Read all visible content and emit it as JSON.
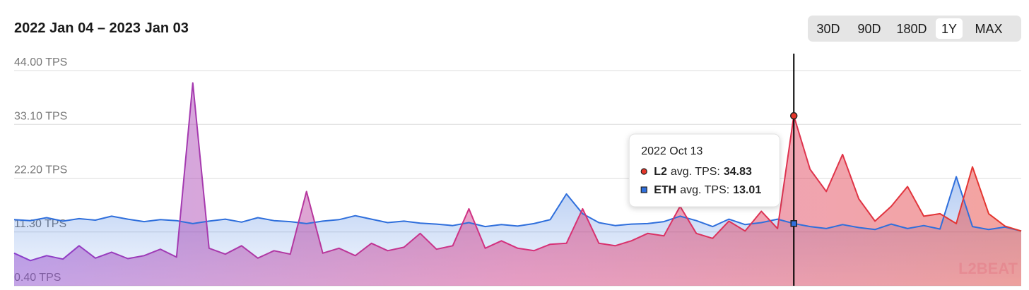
{
  "chart_data": {
    "type": "line",
    "title": "2022 Jan 04 – 2023 Jan 03",
    "ranges": [
      "30D",
      "90D",
      "180D",
      "1Y",
      "MAX"
    ],
    "selected_range": "1Y",
    "watermark": "L2BEAT",
    "categories": [
      null,
      null,
      null,
      null,
      null,
      null,
      null,
      null,
      null,
      null,
      null,
      null,
      null,
      null,
      null,
      null,
      null,
      null,
      null,
      null,
      null,
      null,
      null,
      null,
      null,
      null,
      null,
      null,
      null,
      null,
      null,
      null,
      null,
      null,
      null,
      null,
      null,
      null,
      null,
      null,
      null,
      null,
      null,
      null,
      null,
      null,
      null,
      null,
      "2022 Oct 13",
      null,
      null,
      null,
      null,
      null,
      null,
      null,
      null,
      null,
      null,
      null,
      null,
      null,
      null
    ],
    "ylim": [
      0.4,
      44
    ],
    "yticks": [
      {
        "value": 0.4,
        "label": "0.40 TPS"
      },
      {
        "value": 11.3,
        "label": "11.30 TPS"
      },
      {
        "value": 22.2,
        "label": "22.20 TPS"
      },
      {
        "value": 33.1,
        "label": "33.10 TPS"
      },
      {
        "value": 44,
        "label": "44.00 TPS"
      }
    ],
    "grid": true,
    "series": [
      {
        "name": "L2",
        "colors": [
          "#8a3fcc",
          "#d6307c",
          "#e5362a"
        ],
        "values": [
          7.0,
          5.5,
          6.5,
          5.8,
          8.5,
          6.0,
          7.2,
          5.9,
          6.5,
          7.8,
          6.2,
          41.5,
          8.0,
          6.8,
          8.5,
          6.0,
          7.5,
          6.8,
          19.5,
          7.0,
          8.0,
          6.5,
          9.0,
          7.5,
          8.2,
          11.0,
          7.8,
          8.5,
          16.0,
          8.0,
          9.5,
          8.0,
          7.5,
          8.8,
          9.0,
          16.0,
          9.0,
          8.5,
          9.5,
          11.0,
          10.5,
          16.5,
          11.0,
          10.0,
          13.5,
          11.5,
          15.5,
          12.0,
          34.83,
          24.0,
          19.5,
          27.0,
          18.0,
          13.5,
          16.5,
          20.5,
          14.5,
          15.0,
          13.0,
          24.5,
          15.0,
          12.5,
          11.5
        ]
      },
      {
        "name": "ETH",
        "color": "#2f6fdc",
        "values": [
          13.8,
          13.6,
          14.2,
          13.5,
          14.0,
          13.7,
          14.5,
          13.9,
          13.4,
          13.8,
          13.6,
          13.0,
          13.5,
          13.9,
          13.3,
          14.2,
          13.6,
          13.4,
          13.0,
          13.5,
          13.8,
          14.6,
          13.9,
          13.2,
          13.5,
          13.1,
          12.9,
          12.6,
          13.2,
          12.4,
          12.8,
          12.5,
          13.0,
          13.8,
          19.0,
          15.0,
          13.2,
          12.6,
          12.9,
          13.0,
          13.4,
          14.5,
          13.6,
          12.4,
          13.9,
          12.8,
          13.2,
          13.9,
          13.01,
          12.4,
          12.0,
          12.8,
          12.2,
          11.8,
          12.9,
          12.0,
          12.6,
          11.9,
          22.5,
          12.4,
          11.8,
          12.3,
          11.5
        ]
      }
    ],
    "tooltip": {
      "index": 48,
      "label": "avg. TPS:"
    }
  }
}
